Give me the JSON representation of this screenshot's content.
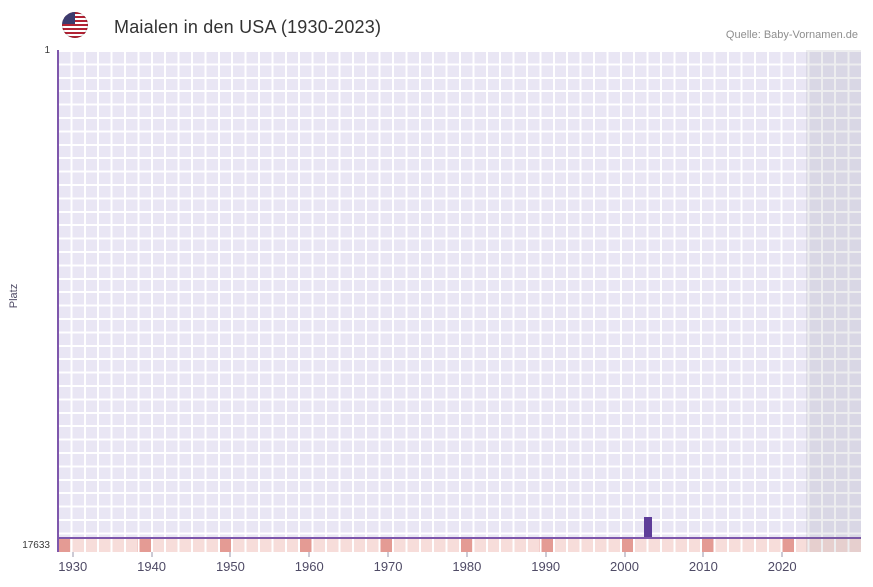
{
  "header": {
    "title": "Maialen in den USA (1930-2023)",
    "source": "Quelle: Baby-Vornamen.de"
  },
  "chart_data": {
    "type": "bar",
    "title": "Maialen in den USA (1930-2023)",
    "xlabel": "",
    "ylabel": "Platz",
    "x_range": [
      1928,
      2030
    ],
    "x_ticks": [
      "1930",
      "1940",
      "1950",
      "1960",
      "1970",
      "1980",
      "1990",
      "2000",
      "2010",
      "2020"
    ],
    "y_axis": {
      "top_label": "1",
      "bottom_label": "17633",
      "min": 1,
      "max": 17633,
      "inverted": true
    },
    "series": [
      {
        "name": "Platz",
        "points": [
          {
            "year": 2003,
            "rank": 16900
          }
        ]
      }
    ],
    "no_data_band": {
      "from_year": 2023,
      "to_year": 2030
    },
    "timeline_strip": {
      "cells_across": 60,
      "accent_every_nth": 6
    },
    "grid": true,
    "legend": false,
    "colors": {
      "plot_bg": "#e9e6f4",
      "grid_line": "#ffffff",
      "bar": "#5e3d99",
      "axis": "#7e57ac",
      "strip_light": "#f7ddda",
      "strip_accent": "#e49b94",
      "band_overlay": "rgba(105,105,125,0.12)"
    }
  }
}
